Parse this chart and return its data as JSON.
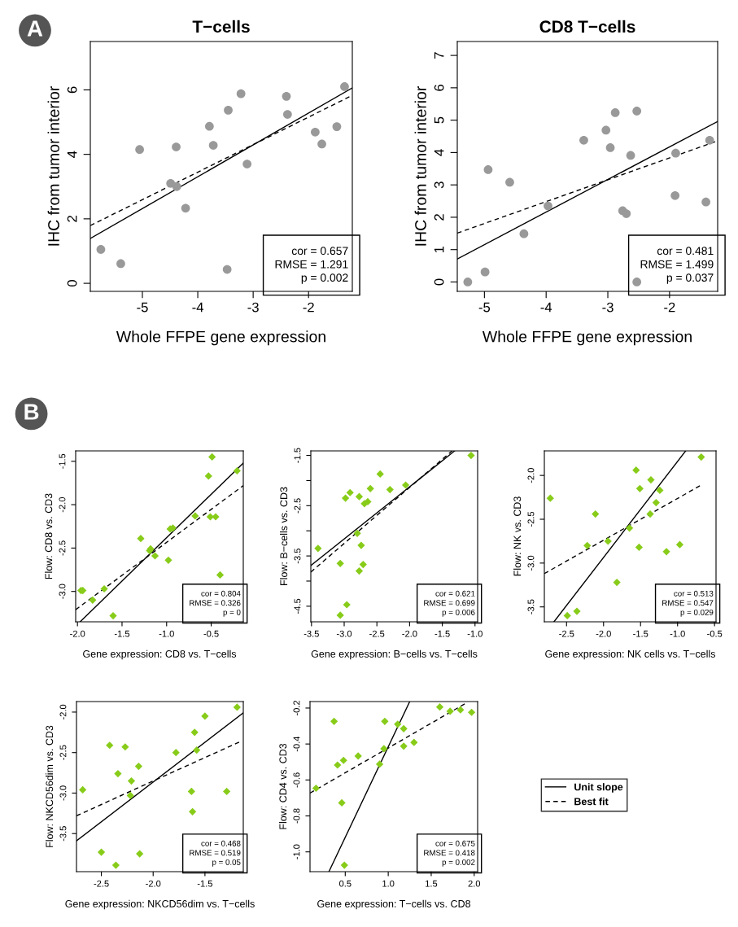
{
  "chart_data": [
    {
      "type": "scatter",
      "title": "T−cells",
      "xlabel": "Whole FFPE gene expression",
      "ylabel": "IHC from tumor interior",
      "xlim": [
        -5.94,
        -1.21
      ],
      "ylim": [
        -0.25,
        7.5
      ],
      "xticks": [
        -5,
        -4,
        -3,
        -2
      ],
      "yticks": [
        0,
        2,
        4,
        6
      ],
      "series": [
        {
          "marker": "circle",
          "color": "#999999",
          "x": [
            -5.75,
            -5.39,
            -5.05,
            -4.49,
            -4.38,
            -4.39,
            -4.22,
            -3.79,
            -3.72,
            -3.45,
            -3.47,
            -3.22,
            -3.11,
            -2.4,
            -2.38,
            -1.88,
            -1.76,
            -1.49,
            -1.35
          ],
          "values": [
            1.05,
            0.61,
            4.15,
            3.1,
            3.0,
            4.23,
            2.33,
            4.87,
            4.28,
            5.37,
            0.43,
            5.88,
            3.7,
            5.8,
            5.24,
            4.69,
            4.32,
            4.86,
            6.1
          ]
        },
        {
          "type": "line",
          "line_style": "solid",
          "color": "#000000",
          "x": [
            -5.94,
            -1.21
          ],
          "values": [
            1.39,
            6.06
          ]
        },
        {
          "type": "line",
          "line_style": "dashed",
          "color": "#000000",
          "x": [
            -5.94,
            -1.21
          ],
          "values": [
            1.79,
            5.83
          ]
        }
      ],
      "annotations": [
        "A",
        "cor = 0.657\nRMSE = 1.291\np = 0.002"
      ]
    },
    {
      "type": "scatter",
      "title": "CD8 T−cells",
      "xlabel": "Whole FFPE gene expression",
      "ylabel": "IHC from tumor interior",
      "xlim": [
        -5.44,
        -1.22
      ],
      "ylim": [
        -0.29,
        7.43
      ],
      "xticks": [
        -5,
        -4,
        -3,
        -2
      ],
      "yticks": [
        0,
        1,
        2,
        3,
        4,
        5,
        6,
        7
      ],
      "series": [
        {
          "marker": "circle",
          "color": "#999999",
          "x": [
            -5.27,
            -4.99,
            -4.94,
            -4.59,
            -4.36,
            -3.97,
            -3.39,
            -3.03,
            -2.88,
            -2.96,
            -2.76,
            -2.7,
            -2.63,
            -2.53,
            -2.53,
            -1.91,
            -1.9,
            -1.41,
            -1.35
          ],
          "values": [
            0.0,
            0.31,
            3.47,
            3.08,
            1.49,
            2.35,
            4.38,
            4.69,
            5.23,
            4.15,
            2.2,
            2.11,
            3.91,
            5.28,
            0.0,
            2.67,
            3.98,
            2.47,
            4.38
          ]
        },
        {
          "type": "line",
          "line_style": "solid",
          "color": "#000000",
          "x": [
            -5.44,
            -1.22
          ],
          "values": [
            0.71,
            4.96
          ]
        },
        {
          "type": "line",
          "line_style": "dashed",
          "color": "#000000",
          "x": [
            -5.44,
            -1.22
          ],
          "values": [
            1.51,
            4.36
          ]
        }
      ],
      "annotations": [
        "cor = 0.481\nRMSE = 1.499\np = 0.037"
      ]
    },
    {
      "type": "scatter",
      "xlabel": "Gene expression: CD8 vs. T−cells",
      "ylabel": "Flow: CD8 vs. CD3",
      "xlim": [
        -2.02,
        -0.14
      ],
      "ylim": [
        -3.35,
        -1.38
      ],
      "xticks": [
        {
          "value": -2,
          "label": "-2.0"
        },
        -1.5,
        {
          "value": -1,
          "label": "-1.0"
        },
        -0.5
      ],
      "yticks": [
        {
          "value": -3,
          "label": "-3.0"
        },
        -2.5,
        {
          "value": -2,
          "label": "-2.0"
        },
        -1.5
      ],
      "series": [
        {
          "marker": "diamond",
          "color": "#88cc1a",
          "x": [
            -1.96,
            -1.94,
            -1.83,
            -1.7,
            -1.6,
            -1.29,
            -1.19,
            -1.18,
            -1.13,
            -0.98,
            -0.96,
            -0.93,
            -0.68,
            -0.53,
            -0.51,
            -0.45,
            -0.49,
            -0.4,
            -0.21
          ],
          "values": [
            -2.99,
            -2.99,
            -3.1,
            -2.97,
            -3.28,
            -2.39,
            -2.53,
            -2.51,
            -2.59,
            -2.64,
            -2.28,
            -2.27,
            -2.13,
            -1.67,
            -2.14,
            -2.14,
            -1.45,
            -2.81,
            -1.61
          ]
        },
        {
          "type": "line",
          "line_style": "solid",
          "color": "#000000",
          "x": [
            -1.97,
            -0.14
          ],
          "values": [
            -3.35,
            -1.52
          ]
        },
        {
          "type": "line",
          "line_style": "dashed",
          "color": "#000000",
          "x": [
            -2.02,
            -0.14
          ],
          "values": [
            -3.21,
            -1.78
          ]
        }
      ],
      "annotations": [
        "B",
        "cor = 0.804\nRMSE = 0.326\np = 0"
      ]
    },
    {
      "type": "scatter",
      "xlabel": "Gene expression: B−cells vs. T−cells",
      "ylabel": "Flow: B−cells vs. CD3",
      "xlim": [
        -3.51,
        -0.96
      ],
      "ylim": [
        -4.81,
        -1.41
      ],
      "xticks": [
        -3.5,
        {
          "value": -3,
          "label": "-3.0"
        },
        -2.5,
        {
          "value": -2,
          "label": "-2.0"
        },
        -1.5,
        {
          "value": -1,
          "label": "-1.0"
        }
      ],
      "yticks": [
        -4.5,
        {
          "value": -4,
          "label": null
        },
        -3.5,
        {
          "value": -3,
          "label": null
        },
        -2.5,
        {
          "value": -2,
          "label": null
        },
        -1.5
      ],
      "series": [
        {
          "marker": "diamond",
          "color": "#88cc1a",
          "x": [
            -3.4,
            -3.06,
            -2.98,
            -2.91,
            -2.77,
            -2.8,
            -2.74,
            -2.71,
            -2.77,
            -2.69,
            -2.64,
            -2.6,
            -2.45,
            -2.96,
            -3.06,
            -2.3,
            -2.06,
            -1.06
          ],
          "values": [
            -3.35,
            -3.65,
            -2.35,
            -2.24,
            -2.32,
            -3.05,
            -3.29,
            -3.67,
            -3.8,
            -2.46,
            -2.42,
            -2.16,
            -1.87,
            -4.47,
            -4.68,
            -2.18,
            -2.09,
            -1.5
          ]
        },
        {
          "type": "line",
          "line_style": "solid",
          "color": "#000000",
          "x": [
            -3.51,
            -1.31
          ],
          "values": [
            -3.69,
            -1.41
          ]
        },
        {
          "type": "line",
          "line_style": "dashed",
          "color": "#000000",
          "x": [
            -3.51,
            -1.35
          ],
          "values": [
            -3.82,
            -1.41
          ]
        }
      ],
      "annotations": [
        "cor = 0.621\nRMSE = 0.699\np = 0.006"
      ]
    },
    {
      "type": "scatter",
      "xlabel": "Gene expression: NK cells vs. T−cells",
      "ylabel": "Flow: NK vs. CD3",
      "xlim": [
        -2.8,
        -0.48
      ],
      "ylim": [
        -3.67,
        -1.72
      ],
      "xticks": [
        -2.5,
        {
          "value": -2,
          "label": "-2.0"
        },
        -1.5,
        {
          "value": -1,
          "label": "-1.0"
        },
        -0.5
      ],
      "yticks": [
        -3.5,
        {
          "value": -3,
          "label": "-3.0"
        },
        -2.5,
        {
          "value": -2,
          "label": "-2.0"
        }
      ],
      "series": [
        {
          "marker": "diamond",
          "color": "#88cc1a",
          "x": [
            -2.72,
            -2.49,
            -2.36,
            -2.22,
            -2.11,
            -1.94,
            -1.65,
            -1.56,
            -1.51,
            -1.52,
            -1.36,
            -1.37,
            -1.29,
            -1.24,
            -1.15,
            -0.97,
            -1.82,
            -0.68
          ],
          "values": [
            -2.26,
            -3.6,
            -3.55,
            -2.8,
            -2.44,
            -2.75,
            -2.6,
            -1.94,
            -2.15,
            -2.82,
            -2.05,
            -2.44,
            -2.31,
            -2.17,
            -2.87,
            -2.79,
            -3.22,
            -1.79
          ]
        },
        {
          "type": "line",
          "line_style": "solid",
          "color": "#000000",
          "x": [
            -2.67,
            -0.89
          ],
          "values": [
            -3.67,
            -1.72
          ]
        },
        {
          "type": "line",
          "line_style": "dashed",
          "color": "#000000",
          "x": [
            -2.8,
            -0.68
          ],
          "values": [
            -3.12,
            -2.11
          ]
        }
      ],
      "annotations": [
        "cor = 0.513\nRMSE = 0.547\np = 0.029"
      ]
    },
    {
      "type": "scatter",
      "xlabel": "Gene expression: NKCD56dim vs. T−cells",
      "ylabel": "Flow: NKCD56dim vs. CD3",
      "xlim": [
        -2.74,
        -1.13
      ],
      "ylim": [
        -3.97,
        -1.87
      ],
      "xticks": [
        -2.5,
        {
          "value": -2,
          "label": "-2.0"
        },
        -1.5
      ],
      "yticks": [
        -3.5,
        {
          "value": -3,
          "label": "-3.0"
        },
        -2.5,
        {
          "value": -2,
          "label": "-2.0"
        }
      ],
      "series": [
        {
          "marker": "diamond",
          "color": "#88cc1a",
          "x": [
            -2.68,
            -2.5,
            -2.42,
            -2.36,
            -2.34,
            -2.27,
            -2.21,
            -2.22,
            -2.14,
            -2.13,
            -1.78,
            -1.63,
            -1.62,
            -1.6,
            -1.58,
            -1.5,
            -1.29,
            -1.19
          ],
          "values": [
            -2.96,
            -3.73,
            -2.41,
            -3.89,
            -2.76,
            -2.43,
            -2.85,
            -3.03,
            -2.67,
            -3.75,
            -2.5,
            -2.98,
            -3.23,
            -2.25,
            -2.47,
            -2.05,
            -2.98,
            -1.94
          ]
        },
        {
          "type": "line",
          "line_style": "solid",
          "color": "#000000",
          "x": [
            -2.74,
            -1.13
          ],
          "values": [
            -3.59,
            -2.01
          ]
        },
        {
          "type": "line",
          "line_style": "dashed",
          "color": "#000000",
          "x": [
            -2.74,
            -1.17
          ],
          "values": [
            -3.28,
            -2.37
          ]
        }
      ],
      "annotations": [
        "cor = 0.468\nRMSE = 0.519\np = 0.05"
      ]
    },
    {
      "type": "scatter",
      "xlabel": "Gene expression: T−cells vs. CD8",
      "ylabel": "Flow: CD4 vs. CD3",
      "legend": "right",
      "xlim": [
        0.09,
        2.04
      ],
      "ylim": [
        -1.11,
        -0.164
      ],
      "xticks": [
        0.5,
        {
          "value": 1,
          "label": "1.0"
        },
        1.5,
        {
          "value": 2,
          "label": "2.0"
        }
      ],
      "yticks": [
        {
          "value": -1,
          "label": "-1.0"
        },
        -0.8,
        -0.6,
        -0.4,
        -0.2
      ],
      "series": [
        {
          "marker": "diamond",
          "color": "#88cc1a",
          "x": [
            0.16,
            0.37,
            0.41,
            0.46,
            0.48,
            0.49,
            0.65,
            0.9,
            0.95,
            0.96,
            1.11,
            1.18,
            1.18,
            1.3,
            1.6,
            1.72,
            1.84,
            1.97
          ],
          "values": [
            -0.646,
            -0.274,
            -0.517,
            -0.727,
            -0.491,
            -1.074,
            -0.467,
            -0.512,
            -0.426,
            -0.274,
            -0.29,
            -0.315,
            -0.412,
            -0.391,
            -0.194,
            -0.218,
            -0.21,
            -0.224
          ]
        },
        {
          "name": "Unit slope",
          "type": "line",
          "line_style": "solid",
          "color": "#000000",
          "x": [
            0.31,
            1.25
          ],
          "values": [
            -1.11,
            -0.164
          ]
        },
        {
          "name": "Best fit",
          "type": "line",
          "line_style": "dashed",
          "color": "#000000",
          "x": [
            0.09,
            1.89
          ],
          "values": [
            -0.673,
            -0.177
          ]
        }
      ],
      "annotations": [
        "cor = 0.675\nRMSE = 0.418\np = 0.002"
      ]
    }
  ]
}
